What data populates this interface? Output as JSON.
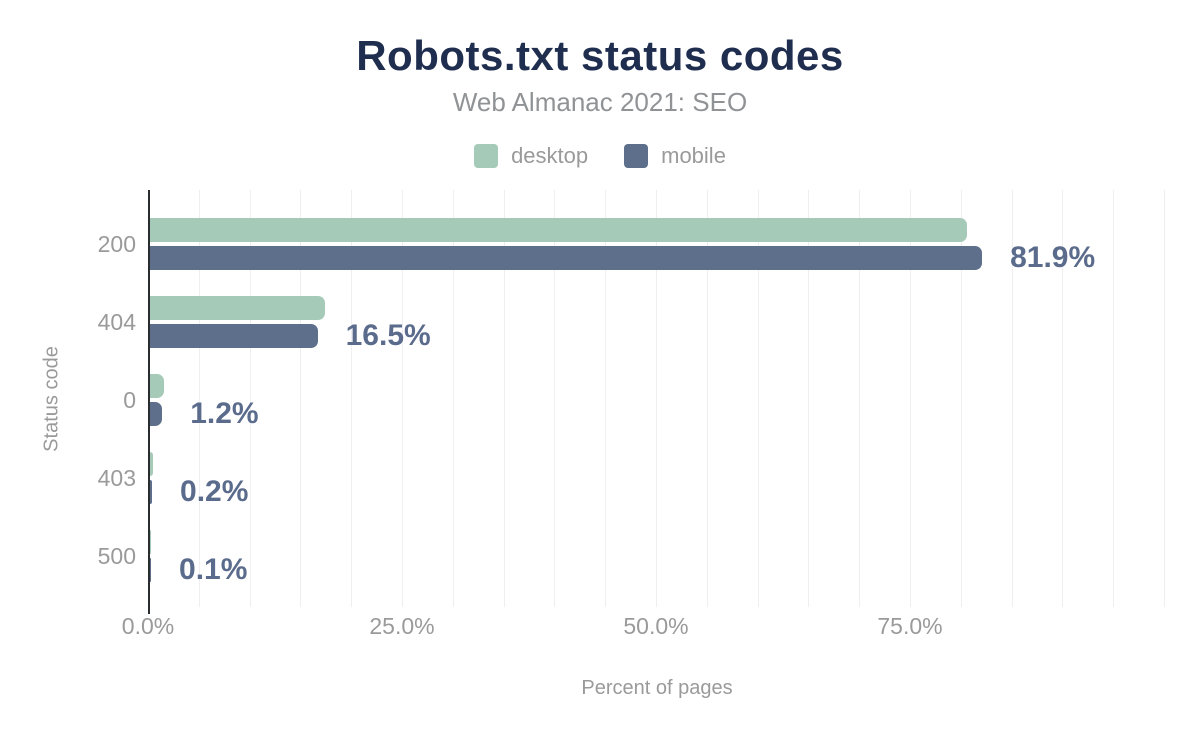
{
  "header": {
    "title": "Robots.txt status codes",
    "subtitle": "Web Almanac 2021: SEO"
  },
  "legend": {
    "items": [
      {
        "label": "desktop",
        "color": "#a5cab7"
      },
      {
        "label": "mobile",
        "color": "#5e6f8c"
      }
    ]
  },
  "chart_data": {
    "type": "bar",
    "orientation": "horizontal",
    "title": "Robots.txt status codes",
    "subtitle": "Web Almanac 2021: SEO",
    "categories": [
      "200",
      "404",
      "0",
      "403",
      "500"
    ],
    "series": [
      {
        "name": "desktop",
        "color": "#a5cab7",
        "values": [
          80.4,
          17.2,
          1.4,
          0.3,
          0.1
        ]
      },
      {
        "name": "mobile",
        "color": "#5e6f8c",
        "values": [
          81.9,
          16.5,
          1.2,
          0.2,
          0.1
        ]
      }
    ],
    "value_labels": {
      "labeled_series": "mobile",
      "texts": [
        "81.9%",
        "16.5%",
        "1.2%",
        "0.2%",
        "0.1%"
      ]
    },
    "xlabel": "Percent of pages",
    "ylabel": "Status code",
    "xlim": [
      0,
      100
    ],
    "x_ticks": [
      {
        "value": 0,
        "label": "0.0%"
      },
      {
        "value": 25,
        "label": "25.0%"
      },
      {
        "value": 50,
        "label": "50.0%"
      },
      {
        "value": 75,
        "label": "75.0%"
      }
    ],
    "gridline_step_pct": 5,
    "grid": true,
    "legend_position": "top"
  },
  "colors": {
    "title_text": "#1f2d4f",
    "subtitle_text": "#909396",
    "axis_text": "#9a9a9a",
    "data_label_text": "#5a6b8c",
    "gridline": "#efeff1",
    "axis_line": "#2a2d30",
    "background": "#ffffff"
  }
}
